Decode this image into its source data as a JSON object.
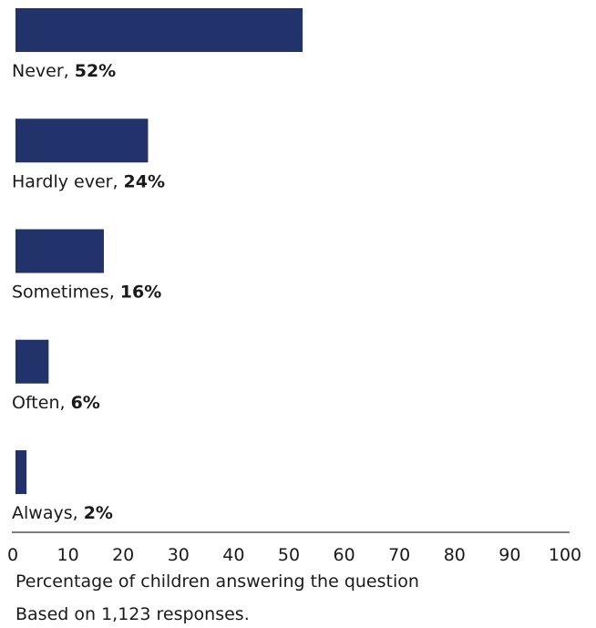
{
  "chart_data": {
    "type": "bar",
    "orientation": "horizontal",
    "categories": [
      "Never",
      "Hardly ever",
      "Sometimes",
      "Often",
      "Always"
    ],
    "values": [
      52,
      24,
      16,
      6,
      2
    ],
    "value_labels": [
      "52%",
      "24%",
      "16%",
      "6%",
      "2%"
    ],
    "xlim": [
      0,
      100
    ],
    "xticks": [
      0,
      10,
      20,
      30,
      40,
      50,
      60,
      70,
      80,
      90,
      100
    ],
    "xlabel": "Percentage of children answering the question",
    "note": "Based on 1,123 responses.",
    "bar_color": "#22326b",
    "axis_color": "#555555",
    "grid": false
  }
}
